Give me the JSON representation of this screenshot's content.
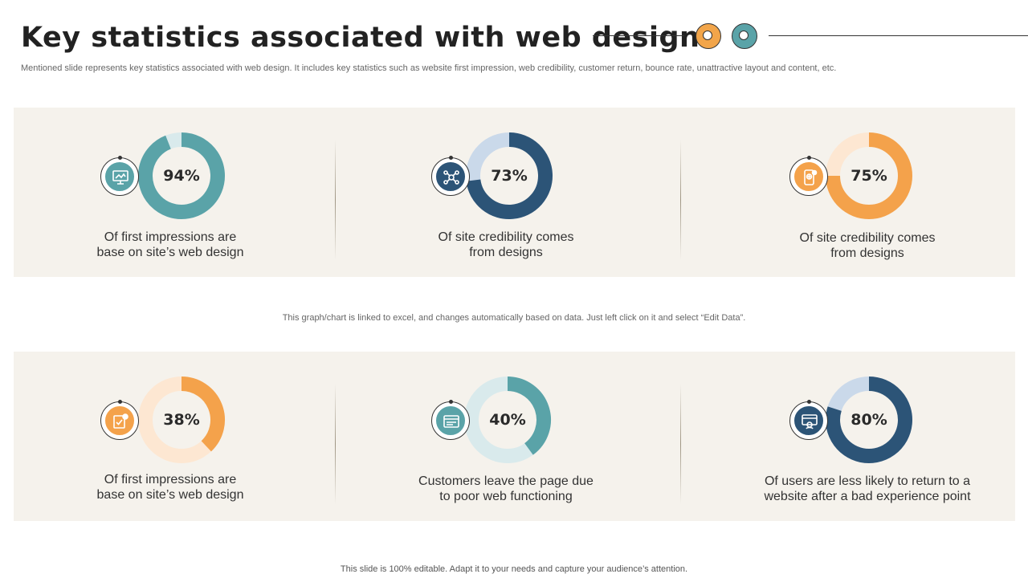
{
  "page": {
    "title": "Key statistics associated with web design",
    "subtitle": "Mentioned slide represents key statistics associated with web design. It includes key statistics such as website first impression, web credibility, customer return, bounce rate, unattractive layout and content, etc.",
    "mid_note": "This graph/chart is linked to excel,  and changes automatically based on data. Just left click on it and select “Edit Data”.",
    "footer": "This slide is 100% editable. Adapt it to your needs and capture your audience’s attention."
  },
  "colors": {
    "teal": "#5aa3a8",
    "teal_light": "#d9eaec",
    "navy": "#2c5477",
    "navy_light": "#cad9ea",
    "orange": "#f4a24b",
    "orange_light": "#fde7d2",
    "panel": "#f5f2ec"
  },
  "chart_data": [
    {
      "type": "pie",
      "label": "94%",
      "value": 94,
      "caption_l1": "Of first impressions are",
      "caption_l2": "base on site’s web design",
      "color": "#5aa3a8",
      "track": "#d9eaec",
      "icon": "presentation-icon"
    },
    {
      "type": "pie",
      "label": "73%",
      "value": 73,
      "caption_l1": "Of site credibility comes",
      "caption_l2": "from designs",
      "color": "#2c5477",
      "track": "#cad9ea",
      "icon": "network-users-icon"
    },
    {
      "type": "pie",
      "label": "75%",
      "value": 75,
      "caption_l1": "Of site credibility comes",
      "caption_l2": "from designs",
      "color": "#f4a24b",
      "track": "#fde7d2",
      "icon": "mobile-web-icon"
    },
    {
      "type": "pie",
      "label": "38%",
      "value": 38,
      "caption_l1": "Of first impressions are",
      "caption_l2": "base on site’s web design",
      "color": "#f4a24b",
      "track": "#fde7d2",
      "icon": "checklist-icon"
    },
    {
      "type": "pie",
      "label": "40%",
      "value": 40,
      "caption_l1": "Customers leave the page due",
      "caption_l2": "to poor web functioning",
      "color": "#5aa3a8",
      "track": "#d9eaec",
      "icon": "browser-window-icon"
    },
    {
      "type": "pie",
      "label": "80%",
      "value": 80,
      "caption_l1": "Of users are less likely to return to a",
      "caption_l2": "website after a bad experience point",
      "color": "#2c5477",
      "track": "#cad9ea",
      "icon": "web-user-icon"
    }
  ]
}
